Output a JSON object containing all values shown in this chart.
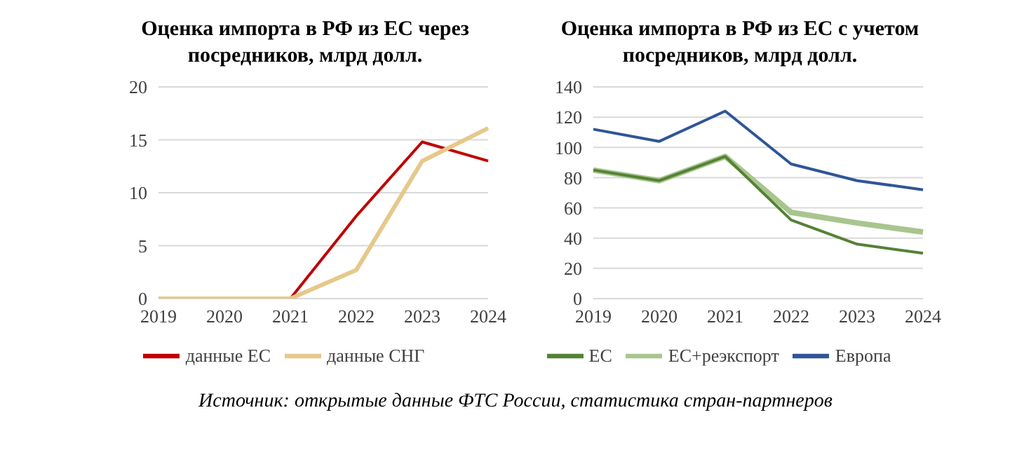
{
  "chart_data": [
    {
      "type": "line",
      "title": "Оценка импорта в РФ из ЕС через посредников, млрд долл.",
      "categories": [
        "2019",
        "2020",
        "2021",
        "2022",
        "2023",
        "2024"
      ],
      "series": [
        {
          "name": "данные ЕС",
          "color": "#c00000",
          "values": [
            0,
            0,
            0,
            7.8,
            14.8,
            13
          ]
        },
        {
          "name": "данные СНГ",
          "color": "#e6c88a",
          "values": [
            0,
            0,
            0,
            2.7,
            13,
            16.1
          ]
        }
      ],
      "ylim": [
        0,
        20
      ],
      "yticks": [
        0,
        5,
        10,
        15,
        20
      ],
      "grid": "y",
      "legend": "bottom",
      "marker": "none",
      "line_style": "solid"
    },
    {
      "type": "line",
      "title": "Оценка импорта в РФ из ЕС с учетом посредников, млрд долл.",
      "categories": [
        "2019",
        "2020",
        "2021",
        "2022",
        "2023",
        "2024"
      ],
      "series": [
        {
          "name": "Европа",
          "color": "#2f5597",
          "values": [
            112,
            104,
            124,
            89,
            78,
            72
          ]
        },
        {
          "name": "ЕС+реэкспорт",
          "color": "#a9c58e",
          "values": [
            85,
            78,
            94,
            57,
            50,
            44
          ]
        },
        {
          "name": "ЕС",
          "color": "#548235",
          "values": [
            85,
            78,
            94,
            52,
            36,
            30
          ]
        }
      ],
      "ylim": [
        0,
        140
      ],
      "yticks": [
        0,
        20,
        40,
        60,
        80,
        100,
        120,
        140
      ],
      "grid": "y",
      "legend": "bottom",
      "marker": "none",
      "line_style": "solid",
      "annotations": [
        "Источник: открытые данные ФТС России, статистика стран-партнеров"
      ]
    }
  ]
}
